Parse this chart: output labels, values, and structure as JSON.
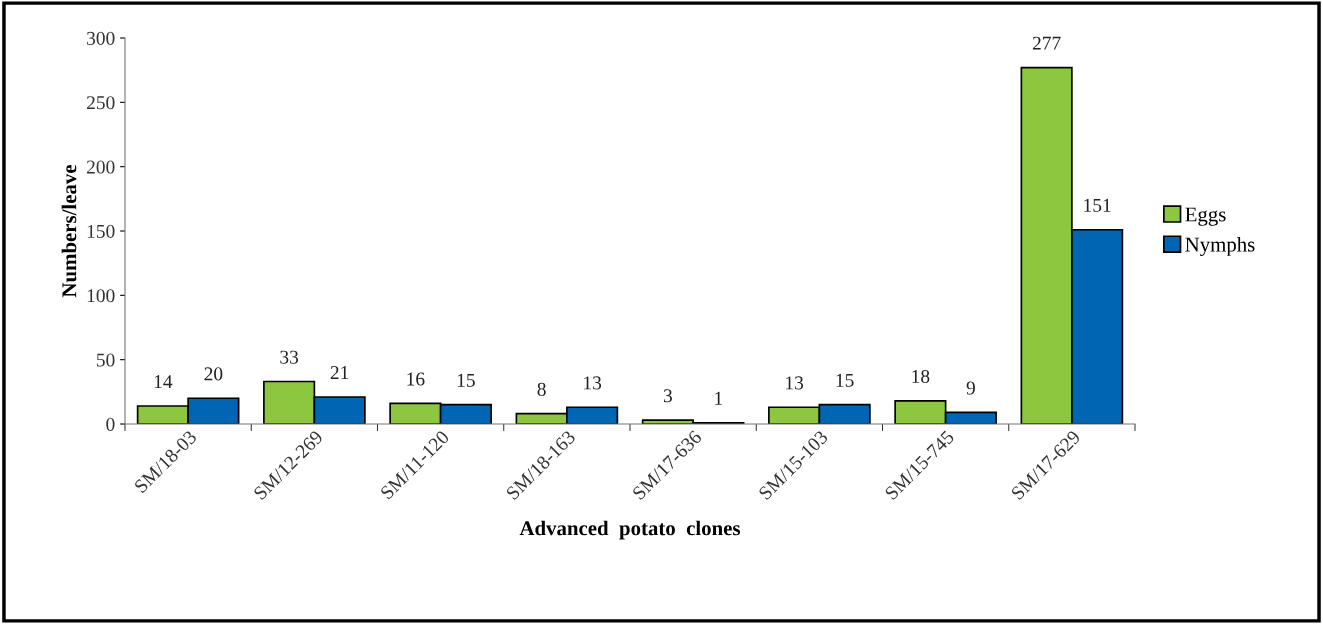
{
  "chart_data": {
    "type": "bar",
    "xlabel": "Advanced  potato  clones",
    "ylabel": "Numbers/leave",
    "categories": [
      "SM/18-03",
      "SM/12-269",
      "SM/11-120",
      "SM/18-163",
      "SM/17-636",
      "SM/15-103",
      "SM/15-745",
      "SM/17-629"
    ],
    "series": [
      {
        "name": "Eggs",
        "color": "#8dc63f",
        "values": [
          14,
          33,
          16,
          8,
          3,
          13,
          18,
          277
        ]
      },
      {
        "name": "Nymphs",
        "color": "#0066b3",
        "values": [
          20,
          21,
          15,
          13,
          1,
          15,
          9,
          151
        ]
      }
    ],
    "ylim": [
      0,
      300
    ],
    "yticks": [
      0,
      50,
      100,
      150,
      200,
      250,
      300
    ],
    "grid": false,
    "legend": "right",
    "data_labels": true
  }
}
